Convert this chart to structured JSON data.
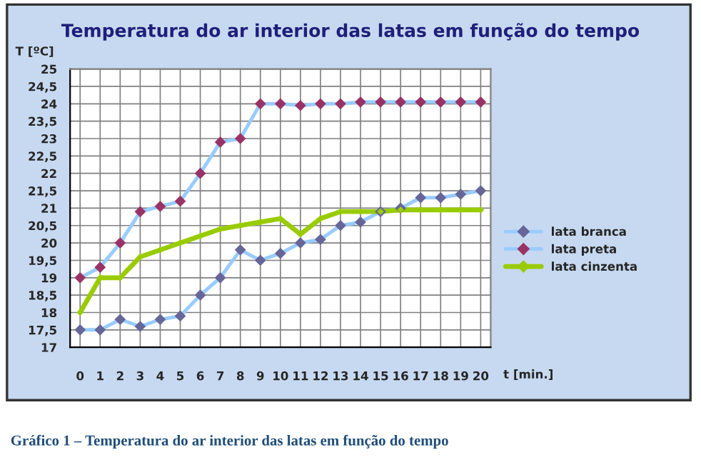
{
  "chart_data": {
    "type": "line",
    "title": "Temperatura do ar interior das latas em função do tempo",
    "xlabel": "t [min.]",
    "ylabel": "T [ºC]",
    "annotations": [
      "Gráfico 1 – Temperatura do ar interior das latas em função do tempo"
    ],
    "categories": [
      "0",
      "1",
      "2",
      "3",
      "4",
      "5",
      "6",
      "7",
      "8",
      "9",
      "10",
      "11",
      "12",
      "13",
      "14",
      "15",
      "16",
      "17",
      "18",
      "19",
      "20"
    ],
    "series": [
      {
        "name": "lata branca",
        "color": "#99ccff",
        "colors": [
          "#666699",
          "#666699",
          "#666699",
          "#666699",
          "#666699",
          "#666699",
          "#666699",
          "#666699",
          "#666699",
          "#666699",
          "#666699",
          "#666699",
          "#666699",
          "#666699",
          "#666699",
          "#666699",
          "#666699",
          "#666699",
          "#666699",
          "#666699",
          "#666699"
        ],
        "values": [
          17.5,
          17.5,
          17.8,
          17.6,
          17.8,
          17.9,
          18.5,
          19,
          19.8,
          19.5,
          19.7,
          20,
          20.1,
          20.5,
          20.6,
          20.9,
          21,
          21.3,
          21.3,
          21.4,
          21.5
        ]
      },
      {
        "name": "lata preta",
        "color": "#99ccff",
        "colors": [
          "#993366",
          "#993366",
          "#993366",
          "#993366",
          "#993366",
          "#993366",
          "#993366",
          "#993366",
          "#993366",
          "#993366",
          "#993366",
          "#993366",
          "#993366",
          "#993366",
          "#993366",
          "#993366",
          "#993366",
          "#993366",
          "#993366",
          "#993366",
          "#993366"
        ],
        "values": [
          19,
          19.3,
          20,
          20.9,
          21.05,
          21.2,
          22,
          22.9,
          23,
          24,
          24,
          23.95,
          24,
          24,
          24.05,
          24.05,
          24.05,
          24.05,
          24.05,
          24.05,
          24.05
        ]
      },
      {
        "name": "lata cinzenta",
        "color": "#99cc00",
        "values": [
          18,
          19,
          19,
          19.6,
          19.8,
          20,
          20.2,
          20.4,
          20.5,
          20.6,
          20.7,
          20.25,
          20.7,
          20.9,
          20.9,
          20.9,
          20.95,
          20.95,
          20.95,
          20.95,
          20.95
        ]
      }
    ],
    "ylim": [
      17,
      25
    ],
    "yticks": [
      17,
      {
        "value": 17.5,
        "label": "17,5"
      },
      18,
      {
        "value": 18.5,
        "label": "18,5"
      },
      19,
      {
        "value": 19.5,
        "label": "19,5"
      },
      20,
      {
        "value": 20.5,
        "label": "20,5"
      },
      21,
      {
        "value": 21.5,
        "label": "21,5"
      },
      22,
      {
        "value": 22.5,
        "label": "22,5"
      },
      23,
      {
        "value": 23.5,
        "label": "23,5"
      },
      24,
      {
        "value": 24.5,
        "label": "24,5"
      },
      25
    ],
    "grid": true,
    "legend": "right",
    "marker": "diamond",
    "line_style": "solid"
  }
}
